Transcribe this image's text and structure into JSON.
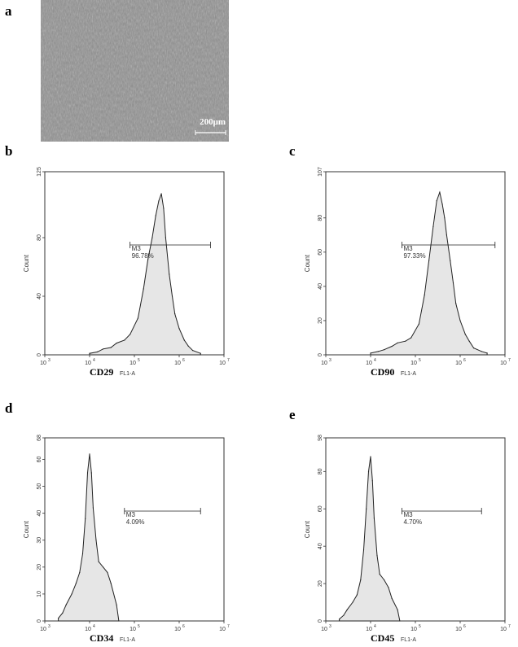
{
  "panels": {
    "a": "a",
    "b": "b",
    "c": "c",
    "d": "d",
    "e": "e"
  },
  "micrograph": {
    "scale_bar": "200μm"
  },
  "chart_data": [
    {
      "id": "b",
      "type": "area",
      "xscale": "log",
      "xlim": [
        1000,
        10000000
      ],
      "x_ticks": [
        "10",
        "10",
        "10",
        "10",
        "10"
      ],
      "x_ticks_exp": [
        "3",
        "4",
        "5",
        "6",
        "7"
      ],
      "ylim": [
        0,
        125
      ],
      "y_ticks": [
        0,
        40,
        80,
        125
      ],
      "ylabel": "Count",
      "xlabel": "CD29",
      "x_channel": "FL1-A",
      "marker": {
        "label": "M3",
        "percent": "96.78%",
        "range": [
          80000,
          5000000
        ]
      },
      "x": [
        10000,
        15000,
        20000,
        30000,
        40000,
        60000,
        80000,
        120000,
        160000,
        200000,
        250000,
        300000,
        350000,
        400000,
        450000,
        500000,
        600000,
        700000,
        800000,
        1000000,
        1300000,
        1600000,
        2000000,
        3000000
      ],
      "values": [
        1,
        2,
        4,
        5,
        8,
        10,
        14,
        25,
        45,
        65,
        80,
        95,
        105,
        110,
        100,
        80,
        55,
        40,
        28,
        18,
        10,
        6,
        3,
        1
      ]
    },
    {
      "id": "c",
      "type": "area",
      "xscale": "log",
      "xlim": [
        1000,
        10000000
      ],
      "x_ticks": [
        "10",
        "10",
        "10",
        "10",
        "10"
      ],
      "x_ticks_exp": [
        "3",
        "4",
        "5",
        "6",
        "7"
      ],
      "ylim": [
        0,
        107
      ],
      "y_ticks": [
        0,
        20,
        40,
        60,
        80,
        107
      ],
      "ylabel": "Count",
      "xlabel": "CD90",
      "x_channel": "FL1-A",
      "marker": {
        "label": "M3",
        "percent": "97.33%",
        "range": [
          50000,
          6000000
        ]
      },
      "x": [
        10000,
        15000,
        20000,
        30000,
        40000,
        60000,
        80000,
        120000,
        160000,
        200000,
        250000,
        300000,
        350000,
        400000,
        450000,
        500000,
        600000,
        700000,
        800000,
        1000000,
        1300000,
        1600000,
        2000000,
        3000000,
        4000000
      ],
      "values": [
        1,
        2,
        3,
        5,
        7,
        8,
        10,
        18,
        35,
        55,
        75,
        90,
        95,
        88,
        80,
        70,
        55,
        42,
        30,
        20,
        12,
        8,
        4,
        2,
        1
      ]
    },
    {
      "id": "d",
      "type": "area",
      "xscale": "log",
      "xlim": [
        1000,
        10000000
      ],
      "x_ticks": [
        "10",
        "10",
        "10",
        "10",
        "10"
      ],
      "x_ticks_exp": [
        "3",
        "4",
        "5",
        "6",
        "7"
      ],
      "ylim": [
        0,
        68
      ],
      "y_ticks": [
        0,
        10,
        20,
        30,
        40,
        50,
        60,
        68
      ],
      "ylabel": "Count",
      "xlabel": "CD34",
      "x_channel": "FL1-A",
      "marker": {
        "label": "M3",
        "percent": "4.09%",
        "range": [
          60000,
          3000000
        ]
      },
      "x": [
        2000,
        2500,
        3000,
        4000,
        5000,
        6000,
        7000,
        8000,
        9000,
        10000,
        11000,
        12000,
        14000,
        16000,
        20000,
        25000,
        30000,
        40000,
        45000
      ],
      "values": [
        1,
        3,
        6,
        10,
        14,
        18,
        25,
        38,
        55,
        62,
        55,
        42,
        30,
        22,
        20,
        18,
        14,
        6,
        0
      ]
    },
    {
      "id": "e",
      "type": "area",
      "xscale": "log",
      "xlim": [
        1000,
        10000000
      ],
      "x_ticks": [
        "10",
        "10",
        "10",
        "10",
        "10"
      ],
      "x_ticks_exp": [
        "3",
        "4",
        "5",
        "6",
        "7"
      ],
      "ylim": [
        0,
        98
      ],
      "y_ticks": [
        0,
        20,
        40,
        60,
        80,
        98
      ],
      "ylabel": "Count",
      "xlabel": "CD45",
      "x_channel": "FL1-A",
      "marker": {
        "label": "M3",
        "percent": "4.70%",
        "range": [
          50000,
          3000000
        ]
      },
      "x": [
        2000,
        2500,
        3000,
        4000,
        5000,
        6000,
        7000,
        8000,
        9000,
        10000,
        11000,
        12000,
        14000,
        16000,
        20000,
        25000,
        30000,
        40000,
        45000
      ],
      "values": [
        1,
        3,
        6,
        10,
        14,
        22,
        38,
        60,
        80,
        88,
        75,
        55,
        35,
        25,
        22,
        18,
        12,
        6,
        0
      ]
    }
  ]
}
